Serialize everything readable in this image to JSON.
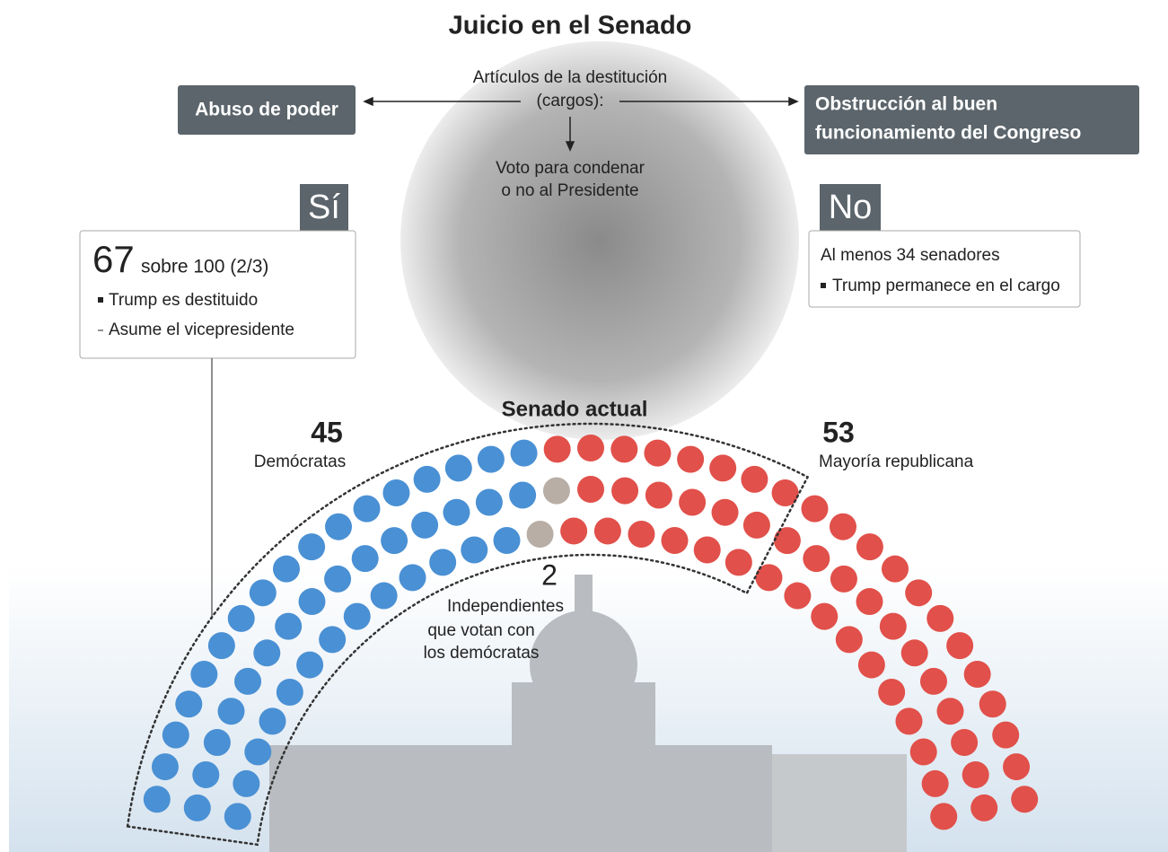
{
  "title": "Juicio en el Senado",
  "articles": {
    "label_lines": [
      "Artículos de la destitución",
      "(cargos):"
    ],
    "left": "Abuso de poder",
    "right_lines": [
      "Obstrucción al buen",
      "funcionamiento del Congreso"
    ]
  },
  "vote_lines": [
    "Voto para condenar",
    "o no al Presidente"
  ],
  "yes": {
    "label": "Sí",
    "count": 67,
    "text": "sobre 100 (2/3)",
    "bullets": [
      "Trump es destituido",
      "Asume el vicepresidente"
    ]
  },
  "no": {
    "label": "No",
    "text": "Al menos 34 senadores",
    "bullets": [
      "Trump permanece en el cargo"
    ]
  },
  "senate": {
    "title": "Senado actual",
    "democrats": {
      "count": 45,
      "label": "Demócratas",
      "color": "#4a90d4"
    },
    "independents": {
      "count": 2,
      "label_lines": [
        "Independientes",
        "que votan con",
        "los demócratas"
      ],
      "color": "#b8aea6"
    },
    "republicans": {
      "count": 53,
      "label": "Mayoría republicana",
      "color": "#e1504a"
    }
  }
}
